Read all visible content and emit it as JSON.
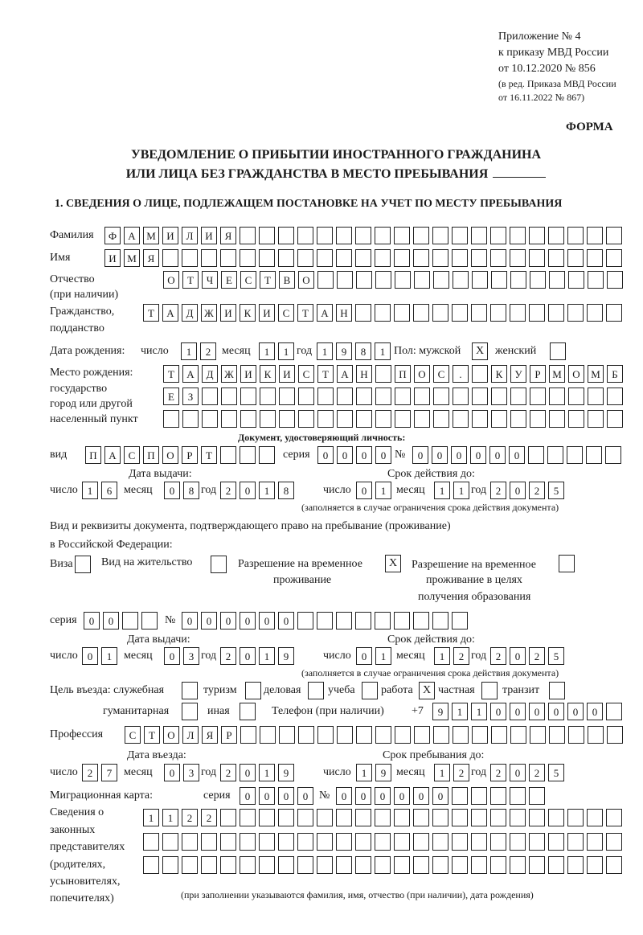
{
  "header": {
    "appendix": "Приложение № 4",
    "order": "к приказу МВД России",
    "order_date": "от 10.12.2020 № 856",
    "revision1": "(в ред. Приказа МВД России",
    "revision2": "от 16.11.2022 № 867)",
    "form_label": "ФОРМА",
    "title1": "УВЕДОМЛЕНИЕ О ПРИБЫТИИ ИНОСТРАННОГО ГРАЖДАНИНА",
    "title2": "ИЛИ ЛИЦА БЕЗ ГРАЖДАНСТВА В МЕСТО ПРЕБЫВАНИЯ",
    "section1": "1. СВЕДЕНИЯ О ЛИЦЕ, ПОДЛЕЖАЩЕМ ПОСТАНОВКЕ НА УЧЕТ ПО МЕСТУ ПРЕБЫВАНИЯ"
  },
  "labels": {
    "surname": "Фамилия",
    "name": "Имя",
    "patronymic": "Отчество",
    "if_any": "(при наличии)",
    "citizenship": "Гражданство,",
    "nationality": "подданство",
    "birth_date": "Дата рождения:",
    "day": "число",
    "month": "месяц",
    "year": "год",
    "sex": "Пол: мужской",
    "female": "женский",
    "birth_place": "Место рождения:",
    "state": "государство",
    "city": "город или другой",
    "locality": "населенный пункт",
    "id_doc": "Документ, удостоверяющий личность:",
    "kind": "вид",
    "series": "серия",
    "number": "№",
    "issue_date": "Дата выдачи:",
    "valid_until": "Срок действия до:",
    "valid_note": "(заполняется в случае ограничения срока действия документа)",
    "right_doc1": "Вид и реквизиты документа, подтверждающего право на пребывание (проживание)",
    "right_doc2": "в Российской Федерации:",
    "visa": "Виза",
    "residence": "Вид на жительство",
    "temp1": "Разрешение на временное",
    "temp2": "проживание",
    "edu1": "Разрешение на временное",
    "edu2": "проживание в целях",
    "edu3": "получения образования",
    "purpose": "Цель въезда: служебная",
    "tourism": "туризм",
    "business": "деловая",
    "study": "учеба",
    "work": "работа",
    "private": "частная",
    "transit": "транзит",
    "humanitarian": "гуманитарная",
    "other": "иная",
    "phone": "Телефон (при наличии)",
    "phone_prefix": "+7",
    "profession": "Профессия",
    "entry_date": "Дата въезда:",
    "stay_until": "Срок пребывания до:",
    "migration_card": "Миграционная карта:",
    "rep1": "Сведения о",
    "rep2": "законных",
    "rep3": "представителях",
    "rep4": "(родителях,",
    "rep5": "усыновителях,",
    "rep6": "попечителях)",
    "rep_note": "(при заполнении указываются фамилия, имя, отчество (при наличии), дата рождения)"
  },
  "fields": {
    "surname": "ФАМИЛИЯ",
    "name": "ИМЯ",
    "patronymic": "ОТЧЕСТВО",
    "citizenship": "ТАДЖИКИСТАН",
    "birth_day": "12",
    "birth_month": "11",
    "birth_year": "1981",
    "sex_male": "X",
    "sex_female": "",
    "birth_place1": "ТАДЖИКИСТАН ПОС. КУРМОМБ",
    "birth_place2": "ЕЗ",
    "birth_place3": "",
    "doc_kind": "ПАСПОРТ",
    "doc_series": "0000",
    "doc_number": "000000",
    "doc_issue_day": "16",
    "doc_issue_month": "08",
    "doc_issue_year": "2018",
    "doc_valid_day": "01",
    "doc_valid_month": "11",
    "doc_valid_year": "2025",
    "visa": "",
    "residence": "",
    "temp_residence": "X",
    "edu_residence": "",
    "right_series": "00",
    "right_number": "000000",
    "right_issue_day": "01",
    "right_issue_month": "03",
    "right_issue_year": "2019",
    "right_valid_day": "01",
    "right_valid_month": "12",
    "right_valid_year": "2025",
    "p_service": "",
    "p_tourism": "",
    "p_business": "",
    "p_study": "",
    "p_work": "X",
    "p_private": "",
    "p_transit": "",
    "p_humanitarian": "",
    "p_other": "",
    "phone": "911000000",
    "profession": "СТОЛЯР",
    "entry_day": "27",
    "entry_month": "03",
    "entry_year": "2019",
    "stay_day": "19",
    "stay_month": "12",
    "stay_year": "2025",
    "mc_series": "0000",
    "mc_number": "000000",
    "rep1": "1122",
    "rep2": "",
    "rep3": ""
  }
}
